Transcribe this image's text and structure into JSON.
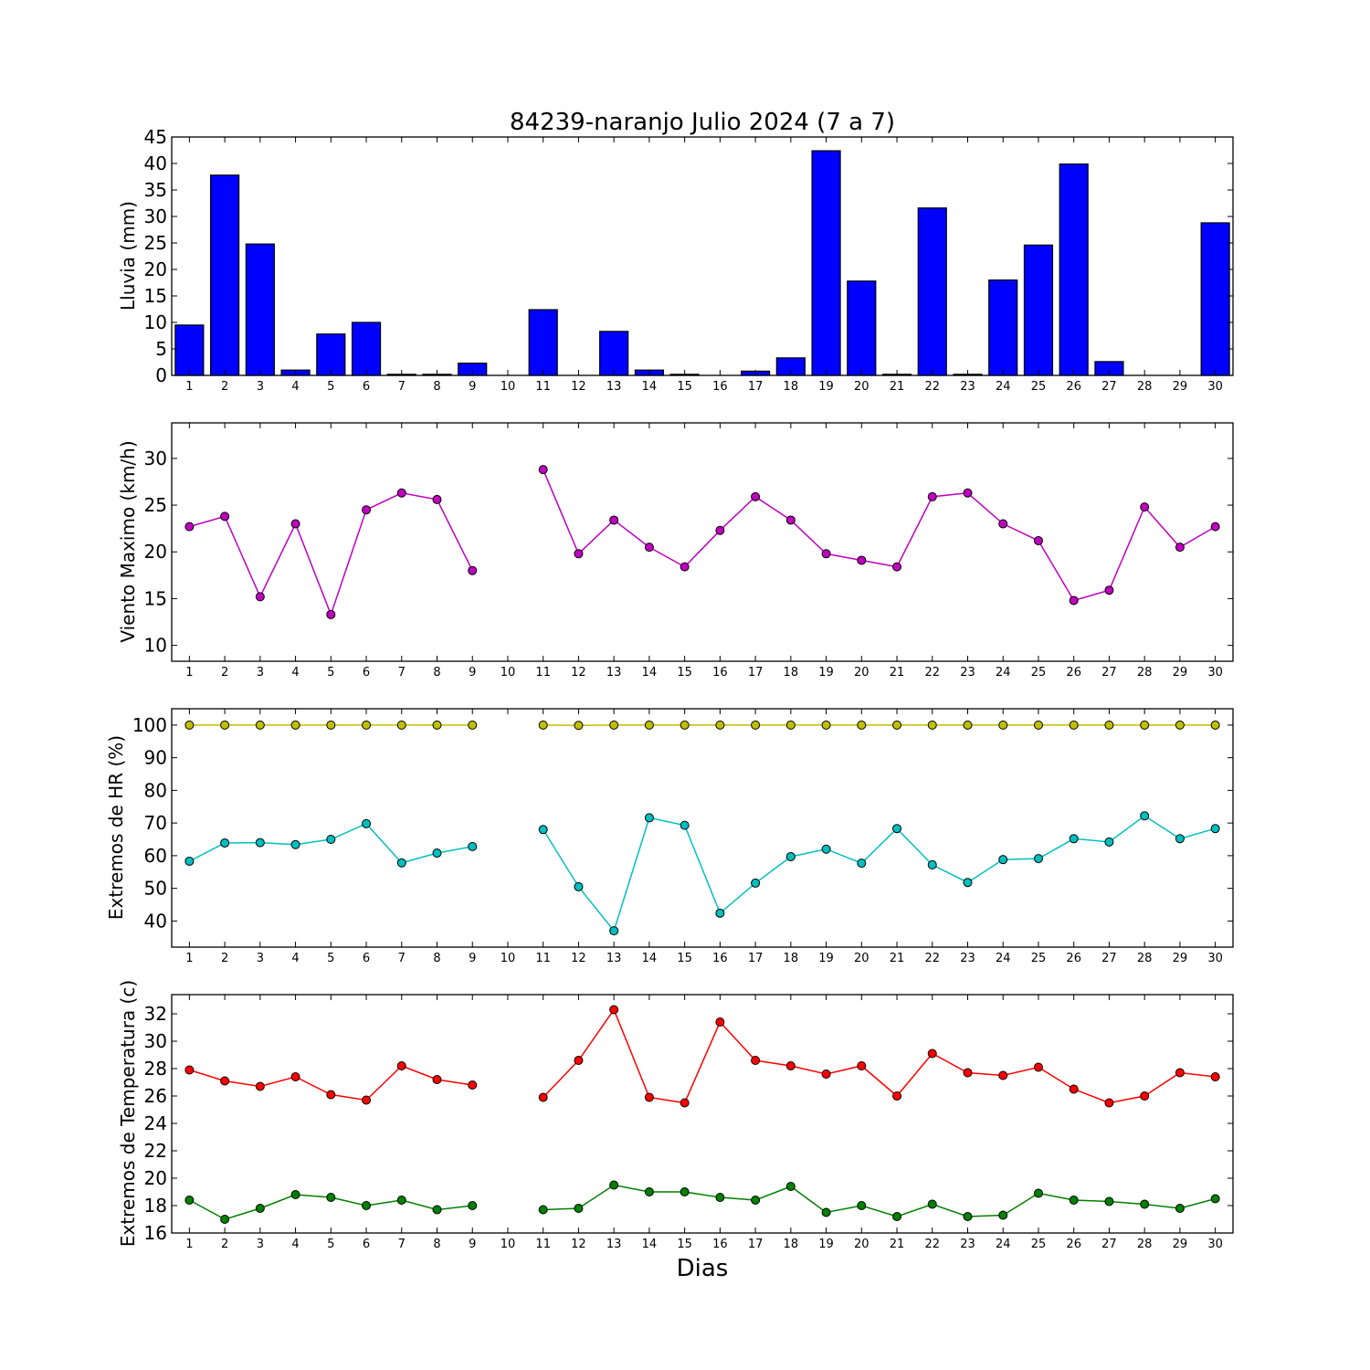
{
  "chart_data": [
    {
      "type": "bar",
      "title": "84239-naranjo Julio 2024  (7 a 7)",
      "ylabel": "Lluvia (mm)",
      "xlabel": "",
      "categories": [
        "1",
        "2",
        "3",
        "4",
        "5",
        "6",
        "7",
        "8",
        "9",
        "10",
        "11",
        "12",
        "13",
        "14",
        "15",
        "16",
        "17",
        "18",
        "19",
        "20",
        "21",
        "22",
        "23",
        "24",
        "25",
        "26",
        "27",
        "28",
        "29",
        "30"
      ],
      "x": [
        1,
        2,
        3,
        4,
        5,
        6,
        7,
        8,
        9,
        10,
        11,
        12,
        13,
        14,
        15,
        16,
        17,
        18,
        19,
        20,
        21,
        22,
        23,
        24,
        25,
        26,
        27,
        28,
        29,
        30
      ],
      "values": [
        9.5,
        37.8,
        24.8,
        1.0,
        7.8,
        10.0,
        0.2,
        0.2,
        2.3,
        0,
        12.4,
        0,
        8.3,
        1.0,
        0.2,
        0,
        0.8,
        3.3,
        42.4,
        17.8,
        0.2,
        31.6,
        0.2,
        18.0,
        24.6,
        39.9,
        2.6,
        0,
        0,
        28.8
      ],
      "color": "#0000ff",
      "ylim": [
        0,
        45
      ],
      "yticks": [
        0,
        5,
        10,
        15,
        20,
        25,
        30,
        35,
        40,
        45
      ],
      "xlim": [
        0.5,
        30.5
      ]
    },
    {
      "type": "line",
      "ylabel": "Viento Maximo (km/h)",
      "xlabel": "",
      "x": [
        1,
        2,
        3,
        4,
        5,
        6,
        7,
        8,
        9,
        10,
        11,
        12,
        13,
        14,
        15,
        16,
        17,
        18,
        19,
        20,
        21,
        22,
        23,
        24,
        25,
        26,
        27,
        28,
        29,
        30
      ],
      "series": [
        {
          "values": [
            22.7,
            23.8,
            15.2,
            23.0,
            13.3,
            24.5,
            26.3,
            25.6,
            18.0,
            null,
            28.8,
            19.8,
            23.4,
            20.5,
            18.4,
            22.3,
            25.9,
            23.4,
            19.8,
            19.1,
            18.4,
            25.9,
            26.3,
            23.0,
            21.2,
            14.8,
            15.9,
            24.8,
            20.5,
            22.7
          ],
          "color": "#bf00bf"
        }
      ],
      "ylim": [
        8.3,
        33.8
      ],
      "yticks": [
        10,
        15,
        20,
        25,
        30
      ],
      "xlim": [
        0.5,
        30.5
      ]
    },
    {
      "type": "line",
      "ylabel": "Extremos de HR (%)",
      "xlabel": "",
      "x": [
        1,
        2,
        3,
        4,
        5,
        6,
        7,
        8,
        9,
        10,
        11,
        12,
        13,
        14,
        15,
        16,
        17,
        18,
        19,
        20,
        21,
        22,
        23,
        24,
        25,
        26,
        27,
        28,
        29,
        30
      ],
      "series": [
        {
          "values": [
            100,
            100,
            100,
            100,
            100,
            100,
            100,
            100,
            100,
            null,
            100,
            99.9,
            100,
            100,
            100,
            100,
            100,
            100,
            100,
            100,
            100,
            100,
            100,
            100,
            100,
            100,
            100,
            100,
            100,
            100
          ],
          "color": "#bfbf00"
        },
        {
          "values": [
            58.3,
            63.9,
            64.0,
            63.4,
            65.0,
            69.8,
            57.8,
            60.8,
            62.8,
            null,
            68.0,
            50.5,
            37.0,
            71.6,
            69.3,
            42.4,
            51.6,
            59.7,
            62.0,
            57.7,
            68.3,
            57.2,
            51.8,
            58.8,
            59.1,
            65.2,
            64.2,
            72.2,
            65.2,
            68.3
          ],
          "color": "#00bfbf"
        }
      ],
      "ylim": [
        32,
        105
      ],
      "yticks": [
        40,
        50,
        60,
        70,
        80,
        90,
        100
      ],
      "xlim": [
        0.5,
        30.5
      ]
    },
    {
      "type": "line",
      "ylabel": "Extremos de Temperatura (c)",
      "xlabel": "Dias",
      "x": [
        1,
        2,
        3,
        4,
        5,
        6,
        7,
        8,
        9,
        10,
        11,
        12,
        13,
        14,
        15,
        16,
        17,
        18,
        19,
        20,
        21,
        22,
        23,
        24,
        25,
        26,
        27,
        28,
        29,
        30
      ],
      "series": [
        {
          "values": [
            27.9,
            27.1,
            26.7,
            27.4,
            26.1,
            25.7,
            28.2,
            27.2,
            26.8,
            null,
            25.9,
            28.6,
            32.3,
            25.9,
            25.5,
            31.4,
            28.6,
            28.2,
            27.6,
            28.2,
            26.0,
            29.1,
            27.7,
            27.5,
            28.1,
            26.5,
            25.5,
            26.0,
            27.7,
            27.4
          ],
          "color": "#ff0000"
        },
        {
          "values": [
            18.4,
            17.0,
            17.8,
            18.8,
            18.6,
            18.0,
            18.4,
            17.7,
            18.0,
            null,
            17.7,
            17.8,
            19.5,
            19.0,
            19.0,
            18.6,
            18.4,
            19.4,
            17.5,
            18.0,
            17.2,
            18.1,
            17.2,
            17.3,
            18.9,
            18.4,
            18.3,
            18.1,
            17.8,
            18.5
          ],
          "color": "#008000"
        }
      ],
      "ylim": [
        16,
        33.4
      ],
      "yticks": [
        16,
        18,
        20,
        22,
        24,
        26,
        28,
        30,
        32
      ],
      "xlim": [
        0.5,
        30.5
      ]
    }
  ]
}
